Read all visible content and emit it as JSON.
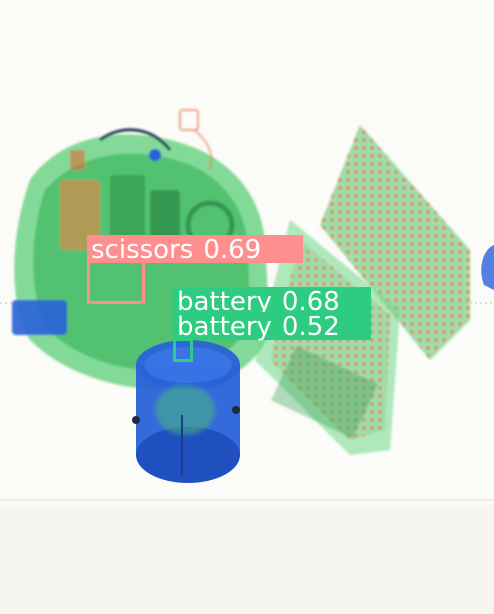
{
  "image": {
    "description_colors": {
      "background": "#fbfbf7",
      "organic_orange": "#e06a3a",
      "mixed_green": "#4ec86a",
      "metal_blue": "#2a62d8"
    }
  },
  "detections": [
    {
      "label": "scissors",
      "score": "0.69",
      "color": "#ff8f8f"
    },
    {
      "label": "battery",
      "score": "0.68",
      "color": "#2ecc80"
    },
    {
      "label": "battery",
      "score": "0.52",
      "color": "#2ecc80"
    }
  ]
}
